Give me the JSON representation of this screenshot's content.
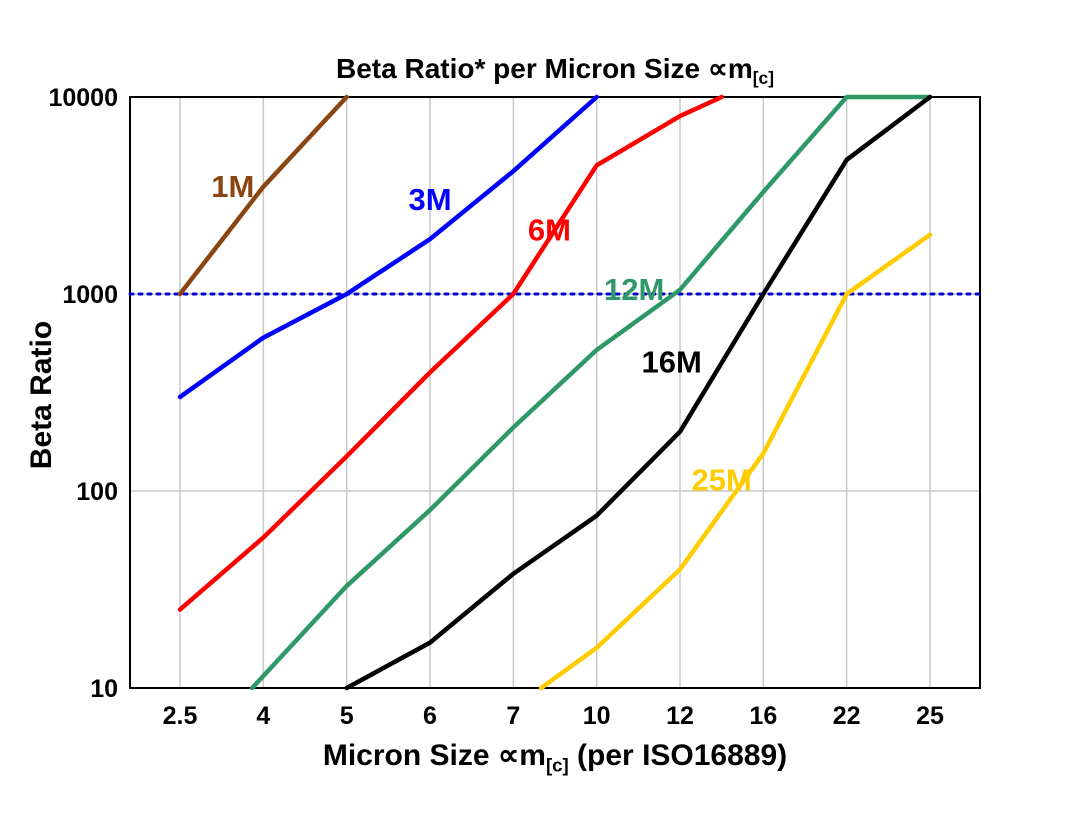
{
  "chart_data": {
    "type": "line",
    "title": {
      "prefix": "Beta Ratio* per Micron Size ",
      "symbol": "∝m",
      "subscript": "[c]"
    },
    "xlabel": {
      "prefix": "Micron Size ",
      "symbol": "∝m",
      "subscript": "[c]",
      "suffix": " (per ISO16889)"
    },
    "ylabel": "Beta Ratio",
    "x_categories": [
      "2.5",
      "4",
      "5",
      "6",
      "7",
      "10",
      "12",
      "16",
      "22",
      "25"
    ],
    "x_values": [
      2.5,
      4,
      5,
      6,
      7,
      10,
      12,
      16,
      22,
      25
    ],
    "y_scale": "log",
    "y_ticks": [
      10,
      100,
      1000,
      10000
    ],
    "y_tick_labels": [
      "10",
      "100",
      "1000",
      "10000"
    ],
    "y_range": [
      10,
      10000
    ],
    "grid": true,
    "grid_color": "#c9c9c9",
    "axis_color": "#000000",
    "background_color": "#ffffff",
    "reference_line": {
      "y": 1000,
      "color": "#0000cc",
      "style": "dotted"
    },
    "series": [
      {
        "name": "1M",
        "color": "#8B4513",
        "points": [
          [
            2.5,
            1000
          ],
          [
            4,
            3500
          ],
          [
            5,
            10000
          ]
        ],
        "label": {
          "x": 3.45,
          "y": 3500
        }
      },
      {
        "name": "3M",
        "color": "#0000FF",
        "points": [
          [
            2.5,
            300
          ],
          [
            4,
            600
          ],
          [
            5,
            1000
          ],
          [
            6,
            1900
          ],
          [
            7,
            4200
          ],
          [
            10,
            10000
          ]
        ],
        "label": {
          "x": 6.0,
          "y": 3000
        }
      },
      {
        "name": "6M",
        "color": "#FF0000",
        "points": [
          [
            2.5,
            25
          ],
          [
            4,
            58
          ],
          [
            5,
            150
          ],
          [
            6,
            400
          ],
          [
            7,
            1000
          ],
          [
            10,
            4500
          ],
          [
            12,
            8000
          ],
          [
            14,
            10000
          ]
        ],
        "label": {
          "x": 8.3,
          "y": 2100
        }
      },
      {
        "name": "12M",
        "color": "#2E9966",
        "points": [
          [
            3.8,
            10
          ],
          [
            5,
            33
          ],
          [
            6,
            80
          ],
          [
            7,
            210
          ],
          [
            10,
            520
          ],
          [
            12,
            1050
          ],
          [
            16,
            3300
          ],
          [
            22,
            10000
          ],
          [
            25,
            10000
          ]
        ],
        "label": {
          "x": 10.9,
          "y": 1050
        }
      },
      {
        "name": "16M",
        "color": "#000000",
        "points": [
          [
            5,
            10
          ],
          [
            6,
            17
          ],
          [
            7,
            38
          ],
          [
            10,
            75
          ],
          [
            12,
            200
          ],
          [
            16,
            1000
          ],
          [
            22,
            4800
          ],
          [
            25,
            10000
          ]
        ],
        "label": {
          "x": 11.8,
          "y": 450
        }
      },
      {
        "name": "25M",
        "color": "#FFCC00",
        "points": [
          [
            8,
            10
          ],
          [
            10,
            16
          ],
          [
            12,
            40
          ],
          [
            16,
            155
          ],
          [
            22,
            1000
          ],
          [
            25,
            2000
          ]
        ],
        "label": {
          "x": 14.0,
          "y": 113
        }
      }
    ]
  }
}
